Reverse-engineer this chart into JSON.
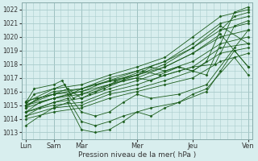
{
  "background_color": "#d8eeee",
  "grid_color": "#aacccc",
  "line_color": "#1a5c1a",
  "marker_color": "#1a5c1a",
  "ylabel_ticks": [
    1013,
    1014,
    1015,
    1016,
    1017,
    1018,
    1019,
    1020,
    1021,
    1022
  ],
  "ylim": [
    1012.5,
    1022.5
  ],
  "xlabel": "Pression niveau de la mer( hPa )",
  "day_labels": [
    "Lun",
    "Sam",
    "Mar",
    "",
    "Mer",
    "",
    "Jeu",
    "",
    "Ven"
  ],
  "day_positions": [
    0,
    1,
    2,
    3,
    4,
    5,
    6,
    7,
    8
  ],
  "vline_positions": [
    0,
    1,
    2,
    4,
    6,
    8
  ],
  "series": [
    {
      "x": [
        0,
        1,
        2,
        3,
        4,
        5,
        6,
        7,
        8
      ],
      "y": [
        1015.2,
        1016.2,
        1016.5,
        1017.2,
        1017.8,
        1018.5,
        1020.0,
        1021.5,
        1022.0
      ]
    },
    {
      "x": [
        0,
        1,
        2,
        3,
        4,
        5,
        6,
        7,
        8
      ],
      "y": [
        1015.0,
        1016.0,
        1016.2,
        1017.0,
        1017.5,
        1018.2,
        1019.5,
        1021.0,
        1021.5
      ]
    },
    {
      "x": [
        0,
        1,
        2,
        3,
        4,
        5,
        6,
        7,
        8
      ],
      "y": [
        1015.0,
        1015.8,
        1016.0,
        1016.8,
        1017.2,
        1018.0,
        1019.2,
        1020.5,
        1021.0
      ]
    },
    {
      "x": [
        0,
        1,
        2,
        3,
        4,
        5,
        6,
        7,
        8
      ],
      "y": [
        1014.8,
        1015.5,
        1015.8,
        1016.5,
        1017.0,
        1017.8,
        1018.8,
        1020.0,
        1020.5
      ]
    },
    {
      "x": [
        0,
        1,
        2,
        3,
        4,
        5,
        6,
        7,
        8
      ],
      "y": [
        1014.5,
        1015.2,
        1015.5,
        1016.2,
        1016.8,
        1017.5,
        1018.2,
        1019.5,
        1020.0
      ]
    },
    {
      "x": [
        0,
        1,
        2,
        3,
        4,
        5,
        6,
        7,
        8
      ],
      "y": [
        1014.5,
        1015.0,
        1015.2,
        1016.0,
        1016.5,
        1017.2,
        1017.8,
        1019.2,
        1019.5
      ]
    },
    {
      "x": [
        0,
        1,
        2,
        3,
        4,
        5,
        6,
        7,
        8
      ],
      "y": [
        1014.2,
        1014.8,
        1015.0,
        1015.8,
        1016.2,
        1016.8,
        1017.5,
        1018.8,
        1019.2
      ]
    },
    {
      "x": [
        0,
        1,
        2,
        3,
        4,
        5,
        6,
        7,
        8
      ],
      "y": [
        1014.0,
        1014.5,
        1014.8,
        1015.5,
        1016.0,
        1016.5,
        1017.0,
        1018.2,
        1018.8
      ]
    },
    {
      "x": [
        0,
        1,
        2,
        3,
        4,
        5,
        6,
        7,
        8
      ],
      "y": [
        1015.3,
        1015.8,
        1016.2,
        1016.8,
        1017.5,
        1018.2,
        1019.2,
        1020.8,
        1019.5
      ]
    },
    {
      "x": [
        0,
        1,
        2,
        3,
        4,
        5,
        6,
        7,
        8
      ],
      "y": [
        1015.0,
        1015.5,
        1016.0,
        1016.5,
        1017.2,
        1017.8,
        1018.8,
        1020.2,
        1017.8
      ]
    },
    {
      "x": [
        0,
        0.3,
        1.0,
        1.3,
        1.6,
        2.0,
        2.5,
        3.2,
        4.0,
        4.5,
        5.0,
        5.5,
        6.5,
        7.5,
        8.0
      ],
      "y": [
        1015.2,
        1016.2,
        1016.5,
        1016.8,
        1015.8,
        1016.2,
        1016.5,
        1016.8,
        1017.2,
        1017.8,
        1017.5,
        1017.8,
        1017.2,
        1021.8,
        1022.2
      ]
    },
    {
      "x": [
        0,
        0.3,
        1.0,
        1.4,
        1.7,
        2.0,
        2.5,
        3.0,
        3.5,
        4.2,
        4.8,
        5.5,
        6.0,
        6.5,
        7.0,
        7.5,
        8.0
      ],
      "y": [
        1015.0,
        1015.8,
        1016.2,
        1016.5,
        1015.5,
        1015.8,
        1016.0,
        1016.5,
        1017.0,
        1017.5,
        1017.2,
        1017.8,
        1017.5,
        1018.2,
        1020.5,
        1021.5,
        1021.8
      ]
    },
    {
      "x": [
        0,
        0.4,
        1.0,
        1.5,
        2.0,
        2.3,
        2.8,
        3.5,
        4.0,
        4.5,
        5.0,
        5.5,
        6.0,
        6.8,
        7.5,
        8.0
      ],
      "y": [
        1014.8,
        1015.5,
        1015.8,
        1016.2,
        1015.5,
        1015.8,
        1016.2,
        1016.8,
        1017.0,
        1016.8,
        1017.2,
        1017.5,
        1017.8,
        1018.0,
        1020.8,
        1021.2
      ]
    },
    {
      "x": [
        0,
        0.5,
        1.0,
        1.5,
        2.0,
        2.5,
        3.0,
        3.5,
        4.0,
        4.5,
        5.5,
        6.5,
        7.5,
        8.0
      ],
      "y": [
        1014.5,
        1015.2,
        1015.5,
        1015.8,
        1014.5,
        1014.2,
        1014.5,
        1015.2,
        1015.8,
        1015.5,
        1015.8,
        1016.5,
        1019.2,
        1020.5
      ]
    },
    {
      "x": [
        0,
        0.5,
        1.0,
        1.5,
        2.0,
        2.5,
        3.0,
        3.5,
        4.5,
        5.5,
        6.5,
        7.0,
        7.5,
        8.0
      ],
      "y": [
        1014.2,
        1014.8,
        1015.2,
        1015.5,
        1013.8,
        1013.5,
        1013.8,
        1014.2,
        1014.8,
        1015.2,
        1016.0,
        1017.5,
        1019.0,
        1017.8
      ]
    },
    {
      "x": [
        0,
        0.5,
        1.0,
        1.5,
        2.0,
        2.5,
        3.0,
        3.5,
        4.0,
        4.5,
        5.0,
        5.5,
        6.0,
        6.5,
        7.5,
        8.0
      ],
      "y": [
        1013.5,
        1014.2,
        1014.8,
        1015.2,
        1013.2,
        1013.0,
        1013.2,
        1013.8,
        1014.5,
        1014.2,
        1014.8,
        1015.2,
        1015.8,
        1016.2,
        1018.5,
        1017.2
      ]
    }
  ]
}
